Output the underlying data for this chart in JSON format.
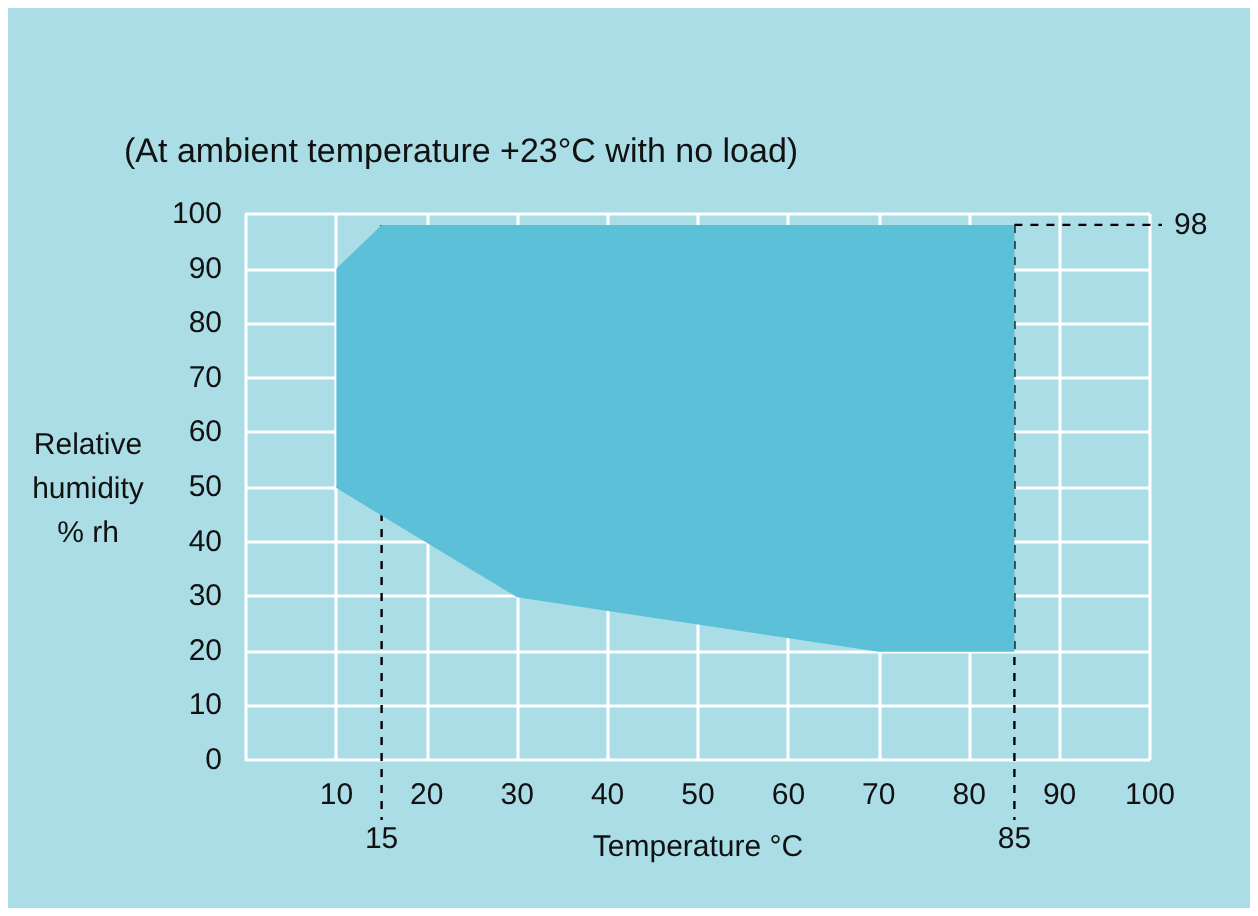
{
  "chart_data": {
    "type": "line",
    "subtitle": "(At ambient temperature +23°C with no load)",
    "xlabel": "Temperature °C",
    "ylabel": "Relative humidity % rh",
    "x": [
      10,
      15,
      30,
      70,
      85
    ],
    "series": [
      {
        "color": "#5bc0d8",
        "values": [
          50,
          45,
          30,
          20,
          20
        ],
        "lower": [
          50,
          45,
          30,
          20,
          20
        ],
        "upper": [
          90,
          98,
          98,
          98,
          98
        ]
      }
    ],
    "xlim": [
      0,
      100
    ],
    "xticks": [
      10,
      20,
      30,
      40,
      50,
      60,
      70,
      80,
      90,
      100
    ],
    "ylim": [
      0,
      100
    ],
    "yticks": [
      0,
      10,
      20,
      30,
      40,
      50,
      60,
      70,
      80,
      90,
      100
    ],
    "grid": true,
    "ref_lines": [
      {
        "axis": "x",
        "value": 15,
        "label": "15",
        "color": "#000000",
        "line_style": "dashed"
      },
      {
        "axis": "x",
        "value": 85,
        "label": "85",
        "color": "#000000",
        "line_style": "dashed"
      },
      {
        "axis": "y",
        "value": 98,
        "label": "98",
        "color": "#000000",
        "line_style": "dashed"
      }
    ]
  }
}
